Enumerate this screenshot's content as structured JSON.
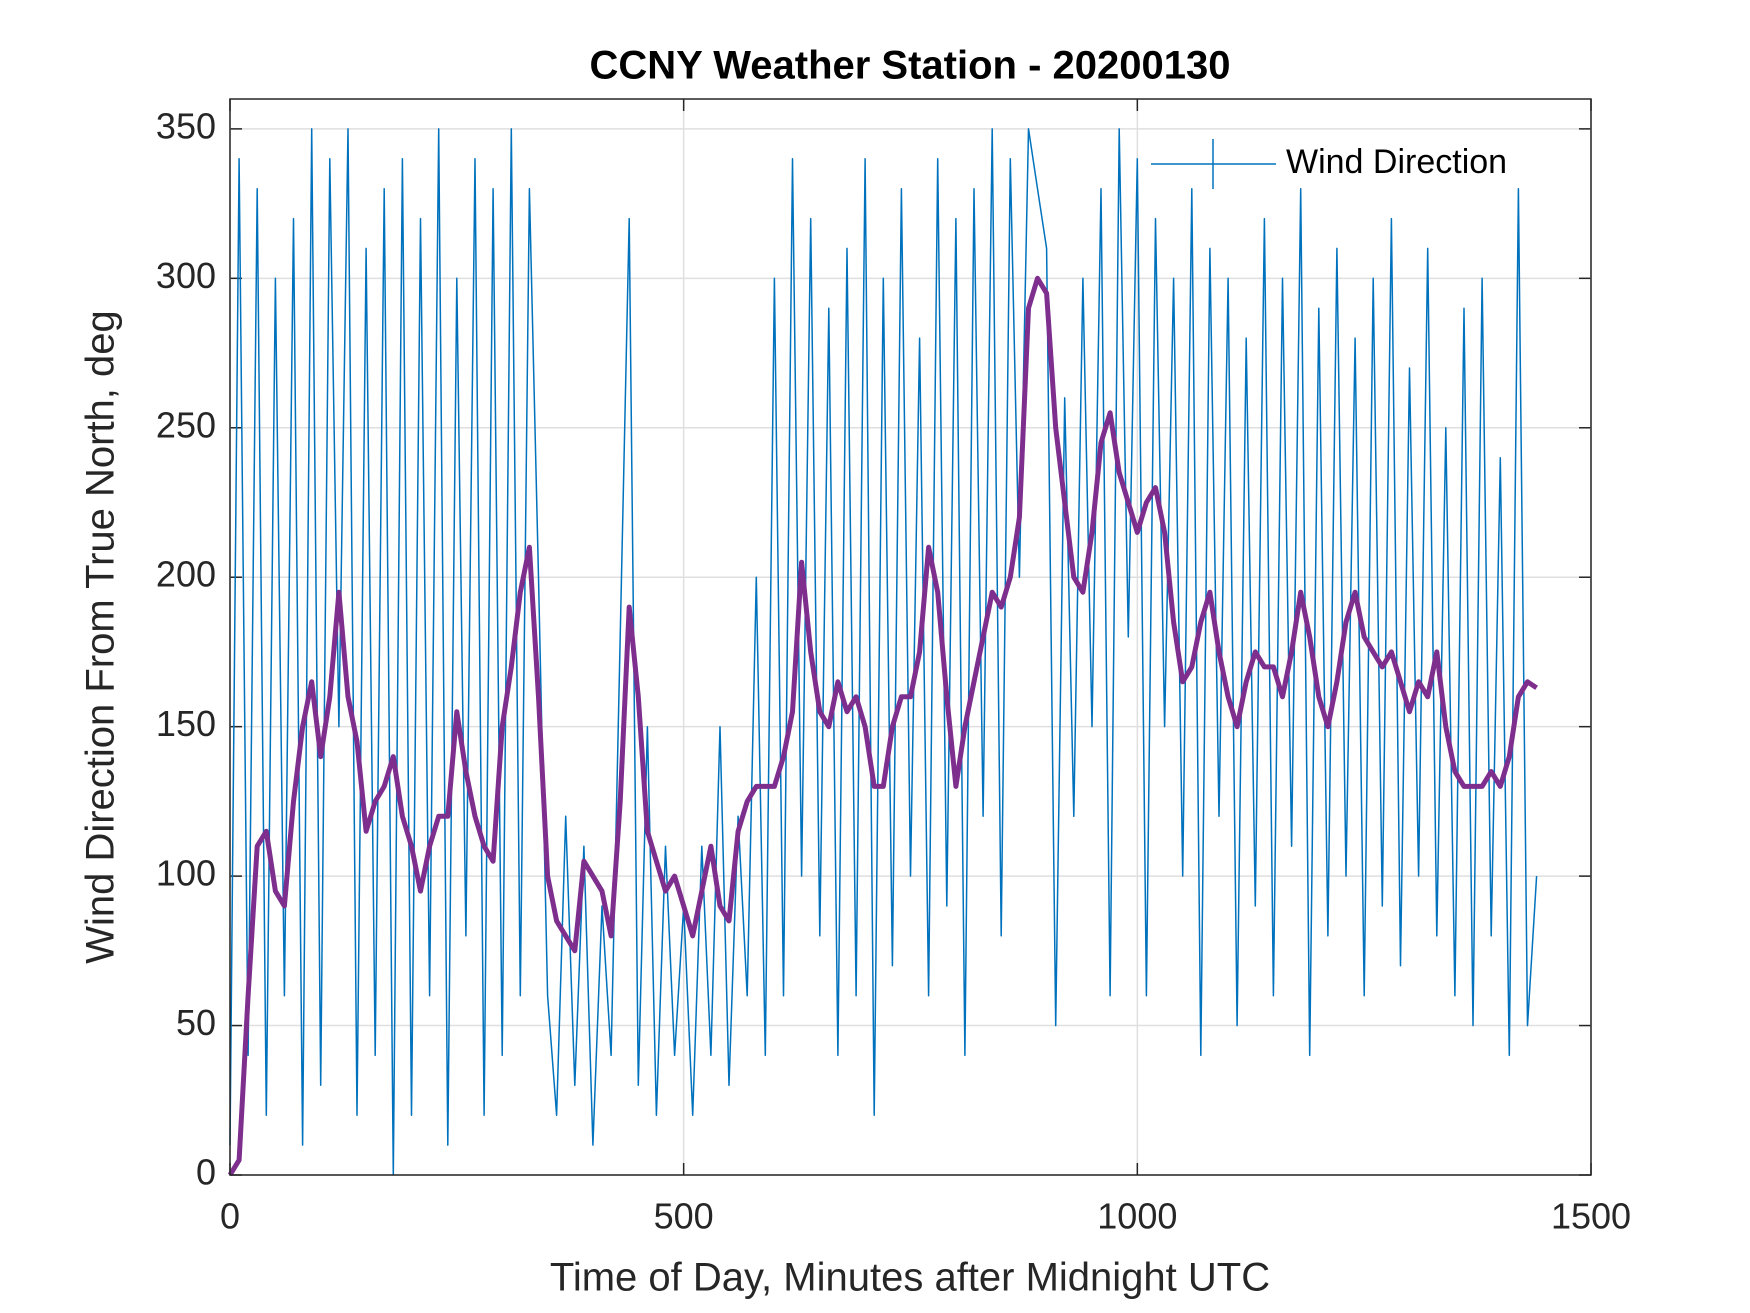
{
  "chart_data": {
    "type": "line",
    "title": "CCNY Weather Station - 20200130",
    "xlabel": "Time of Day, Minutes after Midnight UTC",
    "ylabel": "Wind Direction From True North, deg",
    "x": [
      0,
      10,
      20,
      30,
      40,
      50,
      60,
      70,
      80,
      90,
      100,
      110,
      120,
      130,
      140,
      150,
      160,
      170,
      180,
      190,
      200,
      210,
      220,
      230,
      240,
      250,
      260,
      270,
      280,
      290,
      300,
      310,
      320,
      330,
      340,
      350,
      360,
      370,
      380,
      390,
      400,
      410,
      420,
      430,
      440,
      450,
      460,
      470,
      480,
      490,
      500,
      510,
      520,
      530,
      540,
      550,
      560,
      570,
      580,
      590,
      600,
      610,
      620,
      630,
      640,
      650,
      660,
      670,
      680,
      690,
      700,
      710,
      720,
      730,
      740,
      750,
      760,
      770,
      780,
      790,
      800,
      810,
      820,
      830,
      840,
      850,
      860,
      870,
      880,
      890,
      900,
      910,
      920,
      930,
      940,
      950,
      960,
      970,
      980,
      990,
      1000,
      1010,
      1020,
      1030,
      1040,
      1050,
      1060,
      1070,
      1080,
      1090,
      1100,
      1110,
      1120,
      1130,
      1140,
      1150,
      1160,
      1170,
      1180,
      1190,
      1200,
      1210,
      1220,
      1230,
      1240,
      1250,
      1260,
      1270,
      1280,
      1290,
      1300,
      1310,
      1320,
      1330,
      1340,
      1350,
      1360,
      1370,
      1380,
      1390,
      1400,
      1410,
      1420,
      1430,
      1440
    ],
    "series": [
      {
        "name": "Wind Direction",
        "color": "#0072bd",
        "values": [
          10,
          340,
          40,
          330,
          20,
          300,
          60,
          320,
          10,
          350,
          30,
          340,
          150,
          350,
          20,
          310,
          40,
          330,
          0,
          340,
          20,
          320,
          60,
          350,
          10,
          300,
          80,
          340,
          20,
          330,
          40,
          350,
          60,
          330,
          200,
          60,
          20,
          120,
          30,
          110,
          10,
          90,
          40,
          180,
          320,
          30,
          150,
          20,
          110,
          40,
          90,
          20,
          110,
          40,
          150,
          30,
          120,
          60,
          200,
          40,
          300,
          60,
          340,
          100,
          320,
          80,
          290,
          40,
          310,
          60,
          340,
          20,
          300,
          70,
          330,
          100,
          280,
          60,
          340,
          90,
          320,
          40,
          330,
          120,
          350,
          80,
          340,
          200,
          350,
          330,
          310,
          50,
          260,
          120,
          300,
          150,
          330,
          60,
          350,
          180,
          340,
          60,
          320,
          150,
          300,
          100,
          330,
          40,
          310,
          120,
          300,
          50,
          280,
          90,
          320,
          60,
          300,
          110,
          330,
          40,
          290,
          80,
          310,
          100,
          280,
          60,
          300,
          90,
          320,
          70,
          270,
          100,
          310,
          80,
          250,
          60,
          290,
          50,
          300,
          80,
          240,
          40,
          330,
          50,
          100
        ]
      },
      {
        "color": "#7e2f8e",
        "values": [
          0,
          5,
          60,
          110,
          115,
          95,
          90,
          125,
          150,
          165,
          140,
          160,
          195,
          160,
          145,
          115,
          125,
          130,
          140,
          120,
          110,
          95,
          110,
          120,
          120,
          155,
          135,
          120,
          110,
          105,
          150,
          170,
          195,
          210,
          160,
          100,
          85,
          80,
          75,
          105,
          100,
          95,
          80,
          125,
          190,
          160,
          115,
          105,
          95,
          100,
          90,
          80,
          95,
          110,
          90,
          85,
          115,
          125,
          130,
          130,
          130,
          140,
          155,
          205,
          175,
          155,
          150,
          165,
          155,
          160,
          150,
          130,
          130,
          150,
          160,
          160,
          175,
          210,
          195,
          160,
          130,
          150,
          165,
          180,
          195,
          190,
          200,
          220,
          290,
          300,
          295,
          250,
          225,
          200,
          195,
          215,
          245,
          255,
          235,
          225,
          215,
          225,
          230,
          215,
          185,
          165,
          170,
          185,
          195,
          175,
          160,
          150,
          165,
          175,
          170,
          170,
          160,
          175,
          195,
          180,
          160,
          150,
          165,
          185,
          195,
          180,
          175,
          170,
          175,
          165,
          155,
          165,
          160,
          175,
          150,
          135,
          130,
          130,
          130,
          135,
          130,
          140,
          160,
          165,
          163
        ]
      }
    ],
    "xlim": [
      0,
      1500
    ],
    "xticks": [
      0,
      500,
      1000,
      1500
    ],
    "ylim": [
      0,
      360
    ],
    "yticks": [
      0,
      50,
      100,
      150,
      200,
      250,
      300,
      350
    ],
    "grid": true,
    "legend": "upper right"
  }
}
